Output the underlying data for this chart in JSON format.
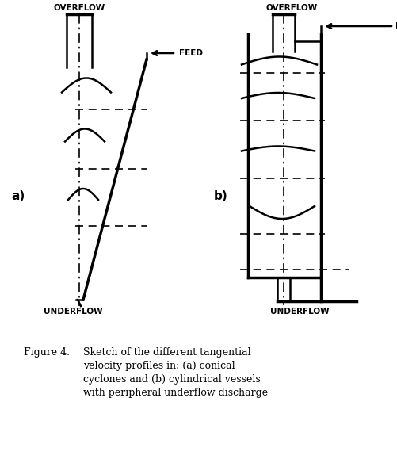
{
  "fig_width": 5.02,
  "fig_height": 5.84,
  "dpi": 100,
  "bg_color": "#ffffff",
  "label_a": "a)",
  "label_b": "b)",
  "overflow_label": "OVERFLOW",
  "underflow_label": "UNDERFLOW",
  "feed_label": "FEED",
  "caption_line1": "Figure 4.   Sketch of the different tangential",
  "caption_line2": "velocity profiles in: (a) conical",
  "caption_line3": "cyclones and (b) cylindrical vessels",
  "caption_line4": "with peripheral underflow discharge"
}
